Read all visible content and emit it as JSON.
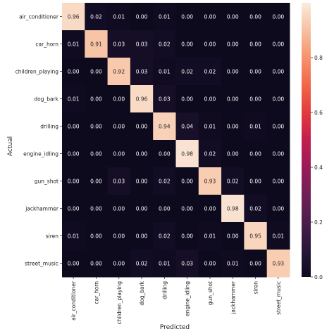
{
  "chart_data": {
    "type": "heatmap",
    "xlabel": "Predicted",
    "ylabel": "Actual",
    "x_categories": [
      "air_conditioner",
      "car_horn",
      "children_playing",
      "dog_bark",
      "drilling",
      "engine_idling",
      "gun_shot",
      "jackhammer",
      "siren",
      "street_music"
    ],
    "y_categories": [
      "air_conditioner",
      "car_horn",
      "children_playing",
      "dog_bark",
      "drilling",
      "engine_idling",
      "gun_shot",
      "jackhammer",
      "siren",
      "street_music"
    ],
    "values": [
      [
        0.96,
        0.02,
        0.01,
        0.0,
        0.01,
        0.0,
        0.0,
        0.0,
        0.0,
        0.0
      ],
      [
        0.01,
        0.91,
        0.03,
        0.03,
        0.02,
        0.0,
        0.0,
        0.0,
        0.0,
        0.0
      ],
      [
        0.0,
        0.0,
        0.92,
        0.03,
        0.01,
        0.02,
        0.02,
        0.0,
        0.0,
        0.0
      ],
      [
        0.01,
        0.0,
        0.0,
        0.96,
        0.03,
        0.0,
        0.0,
        0.0,
        0.0,
        0.0
      ],
      [
        0.0,
        0.0,
        0.0,
        0.0,
        0.94,
        0.04,
        0.01,
        0.0,
        0.01,
        0.0
      ],
      [
        0.0,
        0.0,
        0.0,
        0.0,
        0.0,
        0.98,
        0.02,
        0.0,
        0.0,
        0.0
      ],
      [
        0.0,
        0.0,
        0.03,
        0.0,
        0.02,
        0.0,
        0.93,
        0.02,
        0.0,
        0.0
      ],
      [
        0.0,
        0.0,
        0.0,
        0.0,
        0.0,
        0.0,
        0.0,
        0.98,
        0.02,
        0.0
      ],
      [
        0.01,
        0.0,
        0.0,
        0.0,
        0.02,
        0.0,
        0.01,
        0.0,
        0.95,
        0.01
      ],
      [
        0.0,
        0.0,
        0.0,
        0.02,
        0.01,
        0.03,
        0.0,
        0.01,
        0.0,
        0.93
      ]
    ],
    "value_format": "2-decimal",
    "colorbar": {
      "range": [
        0.0,
        1.0
      ],
      "ticks": [
        "0.0",
        "0.2",
        "0.4",
        "0.6",
        "0.8"
      ],
      "tick_values": [
        0.0,
        0.2,
        0.4,
        0.6,
        0.8
      ],
      "colormap": "rocket"
    },
    "colors": {
      "low": "#0d0a1e",
      "high": "#faebdd"
    },
    "grid": false,
    "legend": "colorbar-right"
  }
}
